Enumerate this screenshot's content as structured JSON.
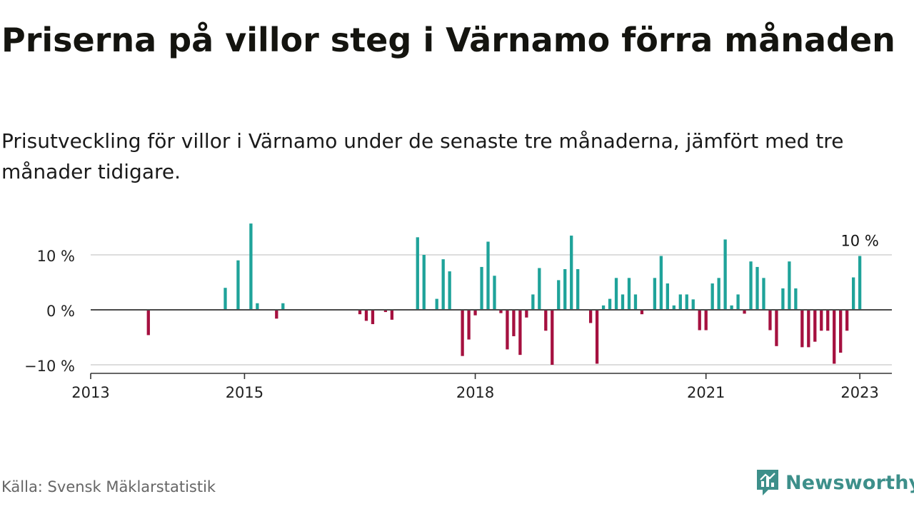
{
  "title": "Priserna på villor steg i Värnamo förra månaden",
  "subtitle": "Prisutveckling för villor i Värnamo under de senaste tre månaderna, jämfört med tre månader tidigare.",
  "source": "Källa: Svensk Mäklarstatistik",
  "brand": {
    "name": "Newsworthy",
    "icon": "newsworthy-logo-icon",
    "color": "#3d8f8a"
  },
  "colors": {
    "positive": "#1fa39a",
    "negative": "#a5103f",
    "zero_line": "#4a4a4a",
    "grid": "#dddddd",
    "axis": "#333333"
  },
  "chart_data": {
    "type": "bar",
    "title": "Priserna på villor steg i Värnamo förra månaden",
    "subtitle": "Prisutveckling för villor i Värnamo under de senaste tre månaderna, jämfört med tre månader tidigare.",
    "xlabel": "",
    "ylabel": "",
    "xlim": [
      "2013-01",
      "2023-06"
    ],
    "ylim": [
      -11.5,
      17
    ],
    "grid": true,
    "y_ticks": [
      {
        "value": 10,
        "label": "10 %"
      },
      {
        "value": 0,
        "label": "0 %"
      },
      {
        "value": -10,
        "label": "−10 %"
      }
    ],
    "x_ticks": [
      {
        "value": "2013-01",
        "label": "2013"
      },
      {
        "value": "2015-01",
        "label": "2015"
      },
      {
        "value": "2018-01",
        "label": "2018"
      },
      {
        "value": "2021-01",
        "label": "2021"
      },
      {
        "value": "2023-01",
        "label": "2023"
      }
    ],
    "annotation": {
      "date": "2023-01",
      "label": "10 %"
    },
    "series": [
      {
        "data": [
          [
            "2013-10",
            -4.6
          ],
          [
            "2014-10",
            4
          ],
          [
            "2014-12",
            9
          ],
          [
            "2015-02",
            15.7
          ],
          [
            "2015-03",
            1.2
          ],
          [
            "2015-06",
            -1.6
          ],
          [
            "2015-07",
            1.2
          ],
          [
            "2016-07",
            -0.8
          ],
          [
            "2016-08",
            -2
          ],
          [
            "2016-09",
            -2.6
          ],
          [
            "2016-11",
            -0.4
          ],
          [
            "2016-12",
            -1.8
          ],
          [
            "2017-04",
            13.2
          ],
          [
            "2017-05",
            10
          ],
          [
            "2017-07",
            2
          ],
          [
            "2017-08",
            9.2
          ],
          [
            "2017-09",
            7
          ],
          [
            "2017-11",
            -8.4
          ],
          [
            "2017-12",
            -5.4
          ],
          [
            "2018-01",
            -1
          ],
          [
            "2018-02",
            7.8
          ],
          [
            "2018-03",
            12.4
          ],
          [
            "2018-04",
            6.2
          ],
          [
            "2018-05",
            -0.6
          ],
          [
            "2018-06",
            -7.2
          ],
          [
            "2018-07",
            -4.8
          ],
          [
            "2018-08",
            -8.2
          ],
          [
            "2018-09",
            -1.4
          ],
          [
            "2018-10",
            2.8
          ],
          [
            "2018-11",
            7.6
          ],
          [
            "2018-12",
            -3.8
          ],
          [
            "2019-01",
            -10
          ],
          [
            "2019-02",
            5.4
          ],
          [
            "2019-03",
            7.4
          ],
          [
            "2019-04",
            13.5
          ],
          [
            "2019-05",
            7.4
          ],
          [
            "2019-07",
            -2.4
          ],
          [
            "2019-08",
            -9.8
          ],
          [
            "2019-09",
            0.8
          ],
          [
            "2019-10",
            2
          ],
          [
            "2019-11",
            5.8
          ],
          [
            "2019-12",
            2.8
          ],
          [
            "2020-01",
            5.8
          ],
          [
            "2020-02",
            2.8
          ],
          [
            "2020-03",
            -0.8
          ],
          [
            "2020-05",
            5.8
          ],
          [
            "2020-06",
            9.8
          ],
          [
            "2020-07",
            4.8
          ],
          [
            "2020-08",
            0.8
          ],
          [
            "2020-09",
            2.8
          ],
          [
            "2020-10",
            2.8
          ],
          [
            "2020-11",
            1.9
          ],
          [
            "2020-12",
            -3.7
          ],
          [
            "2021-01",
            -3.7
          ],
          [
            "2021-02",
            4.8
          ],
          [
            "2021-03",
            5.8
          ],
          [
            "2021-04",
            12.8
          ],
          [
            "2021-05",
            0.8
          ],
          [
            "2021-06",
            2.8
          ],
          [
            "2021-07",
            -0.7
          ],
          [
            "2021-08",
            8.8
          ],
          [
            "2021-09",
            7.8
          ],
          [
            "2021-10",
            5.8
          ],
          [
            "2021-11",
            -3.7
          ],
          [
            "2021-12",
            -6.6
          ],
          [
            "2022-01",
            3.9
          ],
          [
            "2022-02",
            8.8
          ],
          [
            "2022-03",
            3.9
          ],
          [
            "2022-04",
            -6.8
          ],
          [
            "2022-05",
            -6.8
          ],
          [
            "2022-06",
            -5.8
          ],
          [
            "2022-07",
            -3.8
          ],
          [
            "2022-08",
            -3.8
          ],
          [
            "2022-09",
            -9.8
          ],
          [
            "2022-10",
            -7.8
          ],
          [
            "2022-11",
            -3.8
          ],
          [
            "2022-12",
            5.9
          ],
          [
            "2023-01",
            9.8
          ]
        ]
      }
    ]
  }
}
